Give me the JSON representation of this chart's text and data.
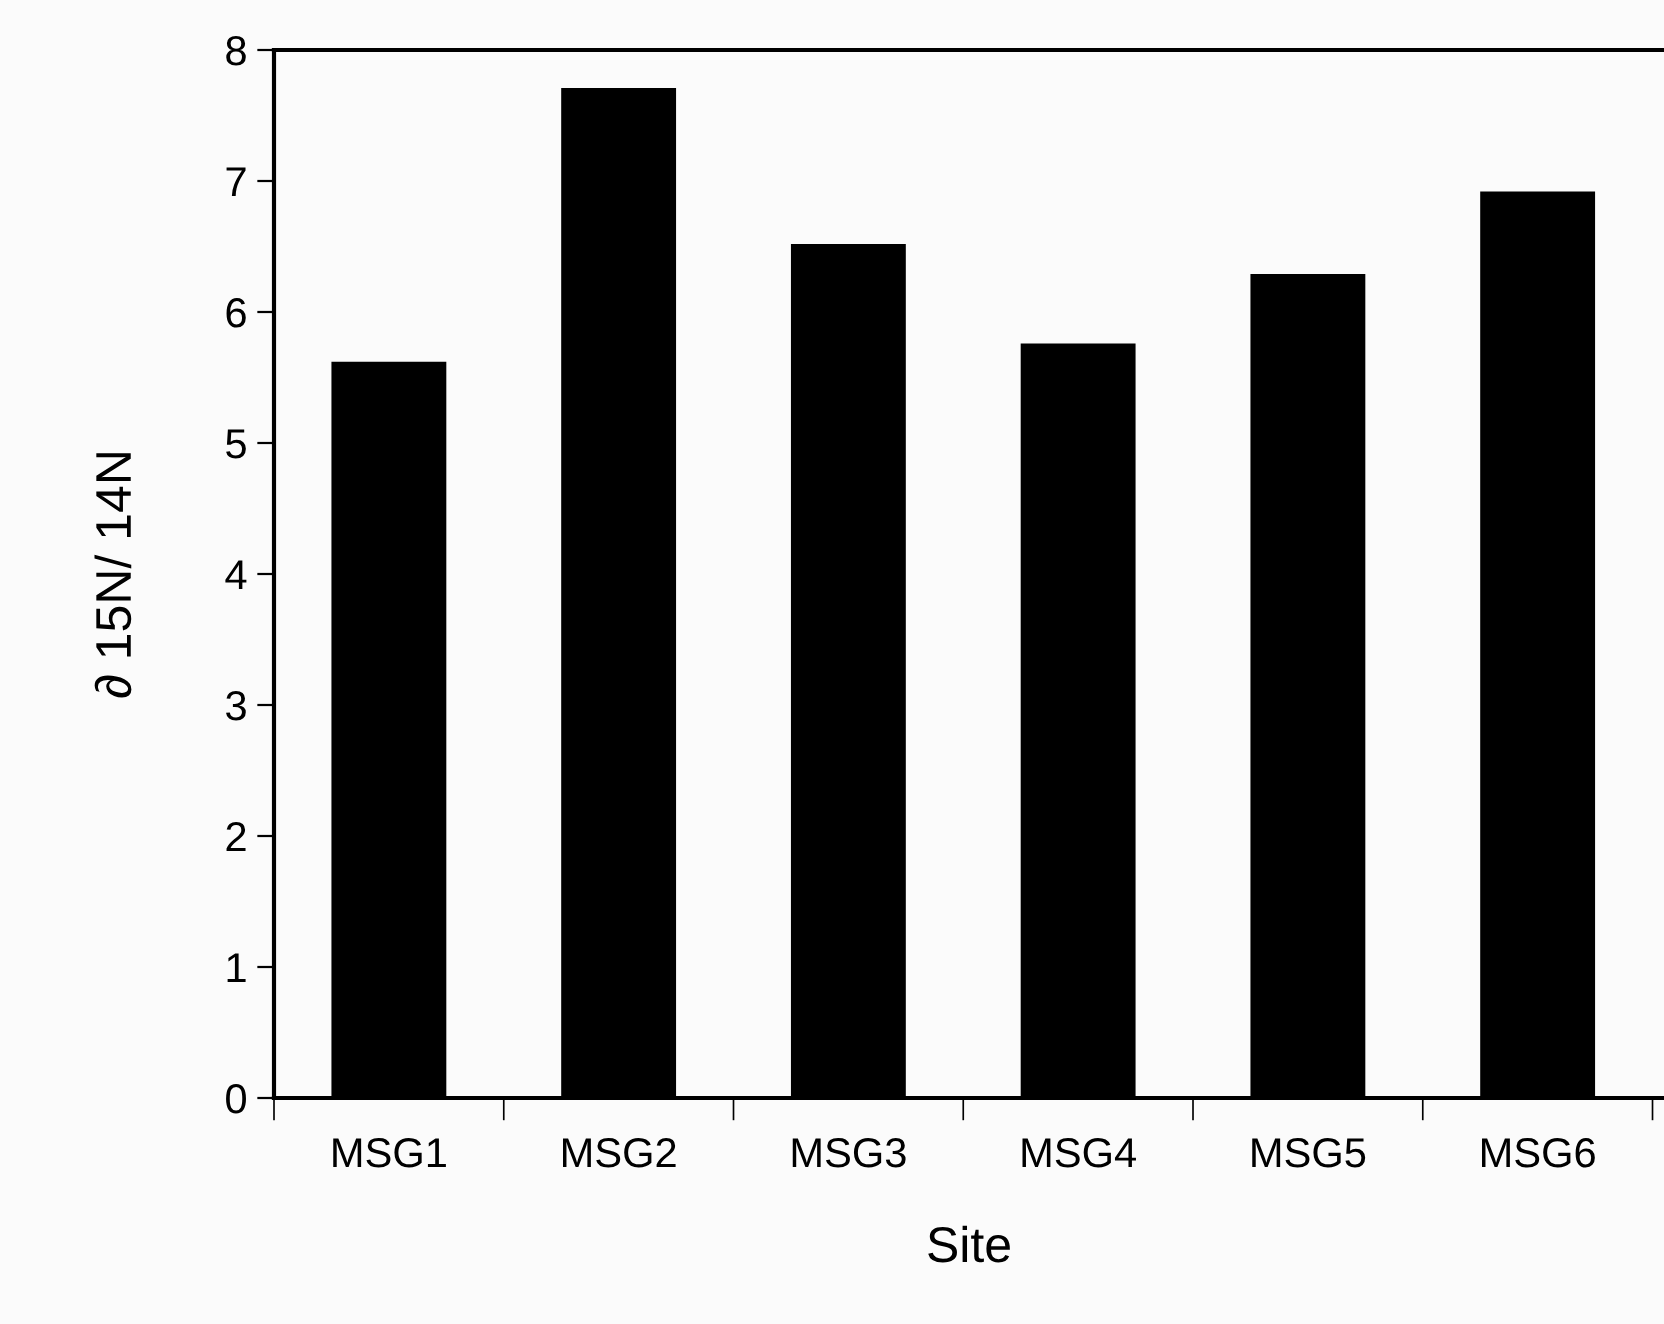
{
  "chart_data": {
    "type": "bar",
    "xlabel": "Site",
    "ylabel": "∂ 15N/ 14N",
    "categories": [
      "MSG1",
      "MSG2",
      "MSG3",
      "MSG4",
      "MSG5",
      "MSG6"
    ],
    "values": [
      5.62,
      7.71,
      6.52,
      5.76,
      6.29,
      6.92
    ],
    "color": "#000000",
    "ylim": [
      0,
      8
    ],
    "yticks": [
      0,
      1,
      2,
      3,
      4,
      5,
      6,
      7,
      8
    ],
    "grid": false
  }
}
